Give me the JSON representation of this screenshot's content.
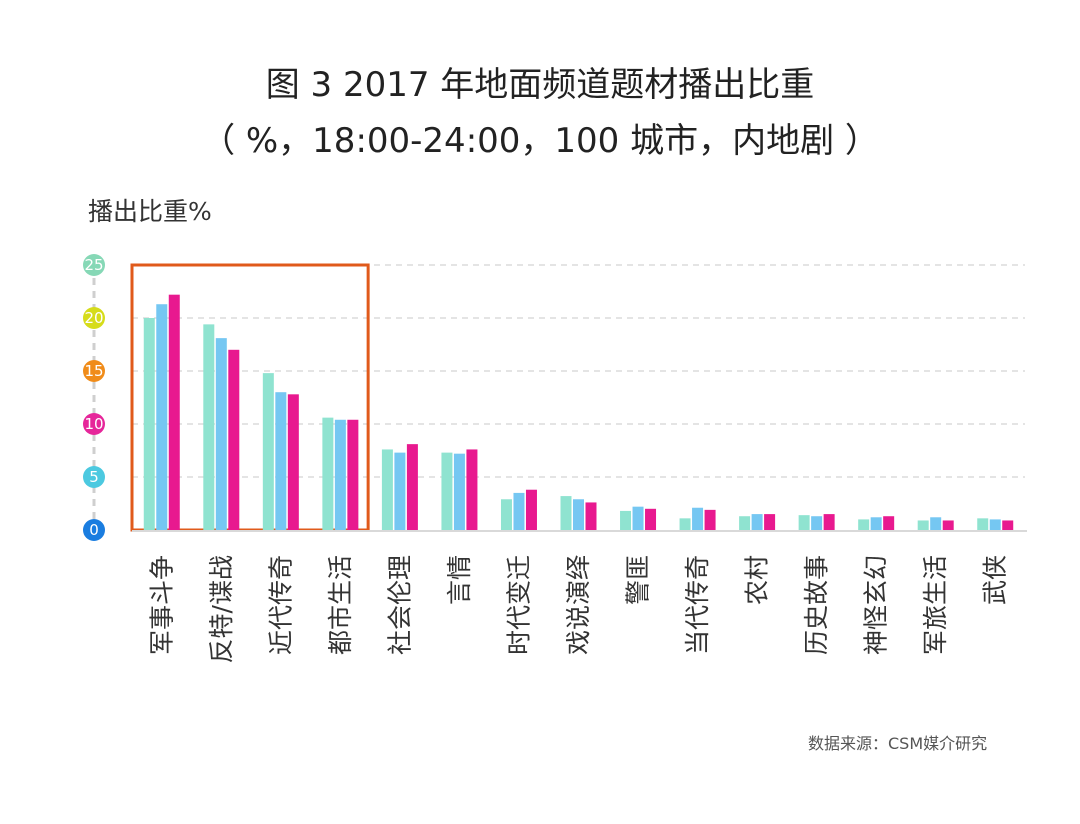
{
  "title_line1": "图 3 2017 年地面频道题材播出比重",
  "title_line2": "（ %，18:00-24:00，100 城市，内地剧 ）",
  "source": "数据来源：CSM媒介研究",
  "chart_data": {
    "type": "bar",
    "ylabel": "播出比重%",
    "ylim": [
      0,
      25
    ],
    "yticks": [
      {
        "value": 0,
        "label": "0",
        "color": "#1a7de0"
      },
      {
        "value": 5,
        "label": "5",
        "color": "#4cc9e0"
      },
      {
        "value": 10,
        "label": "10",
        "color": "#e6269a"
      },
      {
        "value": 15,
        "label": "15",
        "color": "#f08c1a"
      },
      {
        "value": 20,
        "label": "20",
        "color": "#d6dc1a"
      },
      {
        "value": 25,
        "label": "25",
        "color": "#86d8b6"
      }
    ],
    "grid": true,
    "categories": [
      "军事斗争",
      "反特/谍战",
      "近代传奇",
      "都市生活",
      "社会伦理",
      "言情",
      "时代变迁",
      "戏说演绎",
      "警匪",
      "当代传奇",
      "农村",
      "历史故事",
      "神怪玄幻",
      "军旅生活",
      "武侠"
    ],
    "series": [
      {
        "name": "series-teal",
        "color": "#8fe3d0",
        "values": [
          20.0,
          19.4,
          14.8,
          10.6,
          7.6,
          7.3,
          2.9,
          3.2,
          1.8,
          1.1,
          1.3,
          1.4,
          1.0,
          0.9,
          1.1
        ]
      },
      {
        "name": "series-blue",
        "color": "#75c7f2",
        "values": [
          21.3,
          18.1,
          13.0,
          10.4,
          7.3,
          7.2,
          3.5,
          2.9,
          2.2,
          2.1,
          1.5,
          1.3,
          1.2,
          1.2,
          1.0
        ]
      },
      {
        "name": "series-pink",
        "color": "#e8198f",
        "values": [
          22.2,
          17.0,
          12.8,
          10.4,
          8.1,
          7.6,
          3.8,
          2.6,
          2.0,
          1.9,
          1.5,
          1.5,
          1.3,
          0.9,
          0.9
        ]
      }
    ],
    "highlight": {
      "first_category": "军事斗争",
      "last_category": "都市生活",
      "color": "#e05a1b"
    }
  }
}
